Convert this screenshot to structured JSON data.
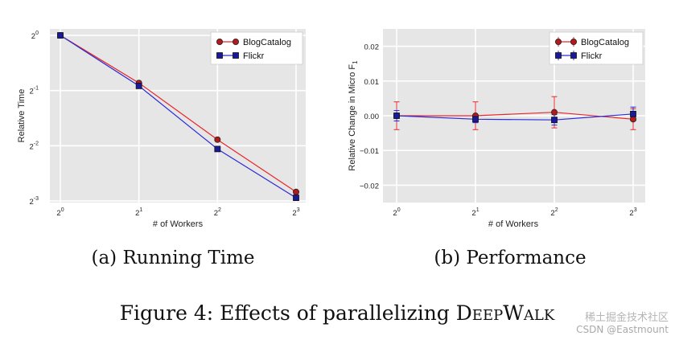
{
  "figure": {
    "caption": "Figure 4: Effects of parallelizing DeepWalk",
    "caption_prefix": "Figure 4: Effects of parallelizing ",
    "caption_smallcaps": "DeepWalk",
    "watermark": "CSDN @Eastmount",
    "watermark_overlay": "稀土掘金技术社区"
  },
  "colors": {
    "blogcatalog": "#e8262a",
    "blogcatalog_marker": "#b31b1b",
    "flickr": "#2b2bd6",
    "flickr_marker": "#1a1a99",
    "plot_bg": "#e6e6e6"
  },
  "chart_data": [
    {
      "type": "line",
      "subcaption": "(a) Running Time",
      "xlabel": "# of Workers",
      "ylabel": "Relative Time",
      "x": [
        1,
        2,
        4,
        8
      ],
      "xticks": [
        {
          "base": "2",
          "exp": "0"
        },
        {
          "base": "2",
          "exp": "1"
        },
        {
          "base": "2",
          "exp": "2"
        },
        {
          "base": "2",
          "exp": "3"
        }
      ],
      "yticks": [
        {
          "base": "2",
          "exp": "0"
        },
        {
          "base": "2",
          "exp": "-1"
        },
        {
          "base": "2",
          "exp": "-2"
        },
        {
          "base": "2",
          "exp": "-3"
        }
      ],
      "xscale": "log2",
      "yscale": "log2",
      "ylim": [
        0.125,
        1
      ],
      "series": [
        {
          "name": "BlogCatalog",
          "values": [
            1,
            0.55,
            0.27,
            0.14
          ]
        },
        {
          "name": "Flickr",
          "values": [
            1,
            0.53,
            0.24,
            0.13
          ]
        }
      ],
      "legend": "top-right",
      "grid": true
    },
    {
      "type": "line",
      "subcaption": "(b) Performance",
      "xlabel": "# of Workers",
      "ylabel": "Relative Change in Micro F",
      "ylabel_sub": "1",
      "x": [
        1,
        2,
        4,
        8
      ],
      "xticks": [
        {
          "base": "2",
          "exp": "0"
        },
        {
          "base": "2",
          "exp": "1"
        },
        {
          "base": "2",
          "exp": "2"
        },
        {
          "base": "2",
          "exp": "3"
        }
      ],
      "yticks": [
        "0.02",
        "0.01",
        "0.00",
        "−0.01",
        "−0.02"
      ],
      "ytick_values": [
        0.02,
        0.01,
        0.0,
        -0.01,
        -0.02
      ],
      "xscale": "log2",
      "ylim": [
        -0.025,
        0.025
      ],
      "series": [
        {
          "name": "BlogCatalog",
          "values": [
            0.0,
            0.0,
            0.001,
            -0.001
          ],
          "errors": [
            0.004,
            0.004,
            0.0045,
            0.003
          ]
        },
        {
          "name": "Flickr",
          "values": [
            0.0,
            -0.001,
            -0.0012,
            0.0005
          ],
          "errors": [
            0.0015,
            0.001,
            0.0015,
            0.002
          ]
        }
      ],
      "legend": "top-right",
      "grid": true
    }
  ]
}
